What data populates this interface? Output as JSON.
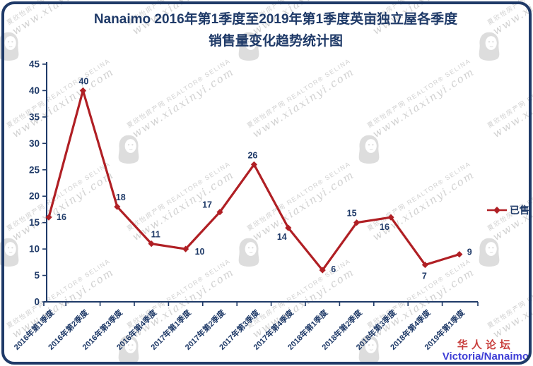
{
  "title": {
    "line1": "Nanaimo 2016年第1季度至2019年第1季度英亩独立屋各季度",
    "line2": "销售量变化趋势统计图"
  },
  "legend": {
    "label": "已售"
  },
  "footer": {
    "forum": "华人论坛",
    "region": "Victoria/Nanaimo"
  },
  "watermark": {
    "agency": "夏欣怡房产网",
    "realtor": "REALTOR® SELINA",
    "site": "www.xiaxinyi.com"
  },
  "colors": {
    "navy": "#1f3a68",
    "line_red": "#b01f24",
    "forum_red": "#c9403e",
    "region_blue": "#3d3dd6",
    "watermark_gray": "#c6c6c6"
  },
  "chart_data": {
    "type": "line",
    "title": "Nanaimo 2016年第1季度至2019年第1季度英亩独立屋各季度销售量变化趋势统计图",
    "categories": [
      "2016年第1季度",
      "2016年第2季度",
      "2016年第3季度",
      "2016年第4季度",
      "2017年第1季度",
      "2017年第2季度",
      "2017年第3季度",
      "2017年第4季度",
      "2018年第1季度",
      "2018年第2季度",
      "2018年第3季度",
      "2018年第4季度",
      "2019年第1季度"
    ],
    "series": [
      {
        "name": "已售",
        "values": [
          16,
          40,
          18,
          11,
          10,
          17,
          26,
          14,
          6,
          15,
          16,
          7,
          9
        ]
      }
    ],
    "xlabel": "",
    "ylabel": "",
    "ylim": [
      0,
      45
    ],
    "yticks": [
      0,
      5,
      10,
      15,
      20,
      25,
      30,
      35,
      40,
      45
    ],
    "grid": false,
    "legend_position": "right",
    "marker": "diamond",
    "data_labels": true
  }
}
